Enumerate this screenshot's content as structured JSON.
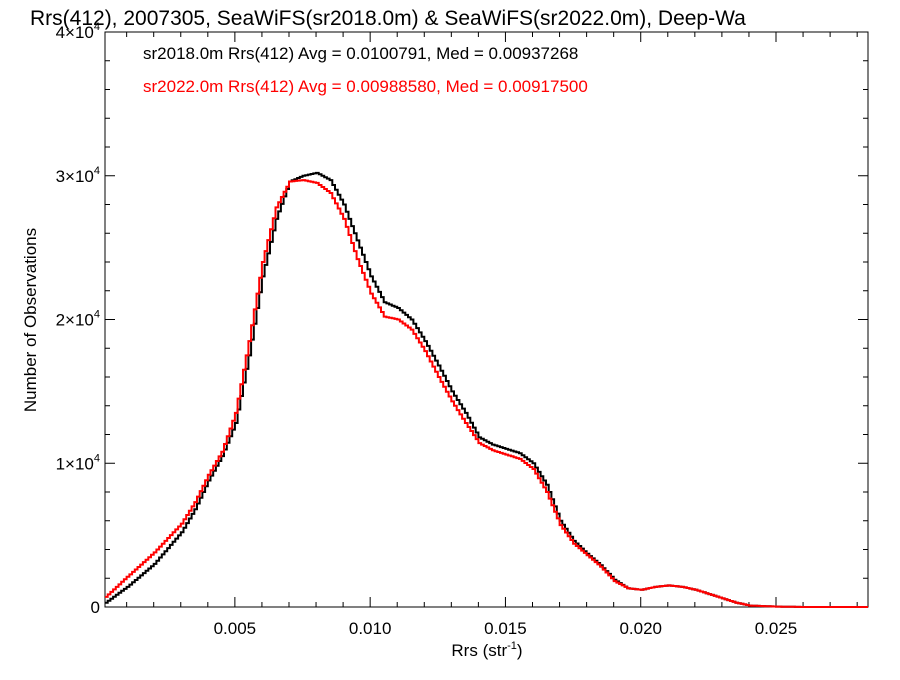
{
  "chart_data": {
    "type": "line",
    "title": "Rrs(412), 2007305, SeaWiFS(sr2018.0m) & SeaWiFS(sr2022.0m), Deep-Wa",
    "xlabel_main": "Rrs (str",
    "xlabel_sup": "-1",
    "xlabel_end": ")",
    "ylabel": "Number of Observations",
    "xlim": [
      0.0002,
      0.0284
    ],
    "ylim": [
      0,
      40000
    ],
    "grid": false,
    "x_ticks": [
      {
        "value": 0.005,
        "label": "0.005"
      },
      {
        "value": 0.01,
        "label": "0.010"
      },
      {
        "value": 0.015,
        "label": "0.015"
      },
      {
        "value": 0.02,
        "label": "0.020"
      },
      {
        "value": 0.025,
        "label": "0.025"
      }
    ],
    "y_ticks": [
      {
        "value": 0,
        "base": "0",
        "exp": ""
      },
      {
        "value": 10000,
        "base": "1×10",
        "exp": "4"
      },
      {
        "value": 20000,
        "base": "2×10",
        "exp": "4"
      },
      {
        "value": 30000,
        "base": "3×10",
        "exp": "4"
      },
      {
        "value": 40000,
        "base": "4×10",
        "exp": "4"
      }
    ],
    "annotations": [
      {
        "text": "sr2018.0m Rrs(412) Avg = 0.0100791, Med = 0.00937268",
        "color": "#000000"
      },
      {
        "text": "sr2022.0m Rrs(412) Avg = 0.00988580, Med = 0.00917500",
        "color": "#ff0000"
      }
    ],
    "series": [
      {
        "color": "#000000",
        "points": [
          [
            0.0002,
            300
          ],
          [
            0.001,
            1400
          ],
          [
            0.002,
            3000
          ],
          [
            0.003,
            5200
          ],
          [
            0.0035,
            6800
          ],
          [
            0.004,
            8800
          ],
          [
            0.0045,
            10500
          ],
          [
            0.005,
            12800
          ],
          [
            0.0055,
            17500
          ],
          [
            0.006,
            23000
          ],
          [
            0.0065,
            27000
          ],
          [
            0.007,
            29600
          ],
          [
            0.0075,
            30000
          ],
          [
            0.008,
            30200
          ],
          [
            0.0085,
            29700
          ],
          [
            0.009,
            28000
          ],
          [
            0.0095,
            25500
          ],
          [
            0.01,
            23000
          ],
          [
            0.0105,
            21200
          ],
          [
            0.011,
            20800
          ],
          [
            0.0115,
            20000
          ],
          [
            0.012,
            18500
          ],
          [
            0.0125,
            16800
          ],
          [
            0.013,
            15000
          ],
          [
            0.0135,
            13500
          ],
          [
            0.014,
            11800
          ],
          [
            0.0145,
            11300
          ],
          [
            0.015,
            11000
          ],
          [
            0.0155,
            10700
          ],
          [
            0.016,
            10000
          ],
          [
            0.0165,
            8500
          ],
          [
            0.017,
            6000
          ],
          [
            0.0175,
            4600
          ],
          [
            0.018,
            3700
          ],
          [
            0.0185,
            2900
          ],
          [
            0.019,
            1900
          ],
          [
            0.0195,
            1300
          ],
          [
            0.02,
            1200
          ],
          [
            0.0205,
            1400
          ],
          [
            0.021,
            1500
          ],
          [
            0.0215,
            1400
          ],
          [
            0.022,
            1200
          ],
          [
            0.0225,
            900
          ],
          [
            0.023,
            600
          ],
          [
            0.0235,
            300
          ],
          [
            0.024,
            100
          ],
          [
            0.025,
            30
          ],
          [
            0.026,
            0
          ],
          [
            0.0284,
            0
          ]
        ]
      },
      {
        "color": "#ff0000",
        "points": [
          [
            0.0002,
            700
          ],
          [
            0.001,
            2100
          ],
          [
            0.002,
            3800
          ],
          [
            0.003,
            5800
          ],
          [
            0.0035,
            7300
          ],
          [
            0.004,
            9200
          ],
          [
            0.0045,
            10800
          ],
          [
            0.005,
            13500
          ],
          [
            0.0055,
            18500
          ],
          [
            0.006,
            24000
          ],
          [
            0.0065,
            27800
          ],
          [
            0.007,
            29600
          ],
          [
            0.0075,
            29700
          ],
          [
            0.008,
            29500
          ],
          [
            0.0085,
            28800
          ],
          [
            0.009,
            27000
          ],
          [
            0.0095,
            24200
          ],
          [
            0.01,
            21800
          ],
          [
            0.0105,
            20200
          ],
          [
            0.011,
            20000
          ],
          [
            0.0115,
            19300
          ],
          [
            0.012,
            17800
          ],
          [
            0.0125,
            16000
          ],
          [
            0.013,
            14300
          ],
          [
            0.0135,
            12800
          ],
          [
            0.014,
            11400
          ],
          [
            0.0145,
            10900
          ],
          [
            0.015,
            10600
          ],
          [
            0.0155,
            10300
          ],
          [
            0.016,
            9600
          ],
          [
            0.0165,
            8000
          ],
          [
            0.017,
            5700
          ],
          [
            0.0175,
            4400
          ],
          [
            0.018,
            3600
          ],
          [
            0.0185,
            2800
          ],
          [
            0.019,
            1800
          ],
          [
            0.0195,
            1300
          ],
          [
            0.02,
            1200
          ],
          [
            0.0205,
            1400
          ],
          [
            0.021,
            1500
          ],
          [
            0.0215,
            1400
          ],
          [
            0.022,
            1200
          ],
          [
            0.0225,
            900
          ],
          [
            0.023,
            600
          ],
          [
            0.0235,
            300
          ],
          [
            0.024,
            100
          ],
          [
            0.025,
            30
          ],
          [
            0.026,
            0
          ],
          [
            0.0284,
            0
          ]
        ]
      }
    ]
  }
}
